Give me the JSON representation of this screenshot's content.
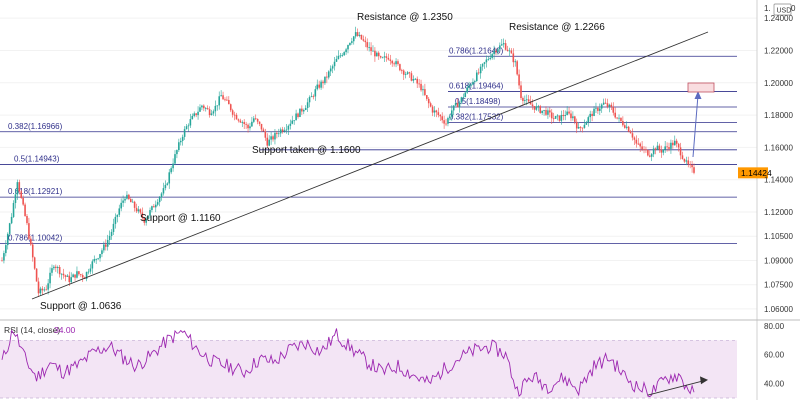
{
  "chart_data": {
    "type": "candlestick",
    "currency_label": "USD",
    "price_axis": {
      "min": 1.055,
      "max": 1.25,
      "ticks": [
        "1.24000",
        "1.22000",
        "1.20000",
        "1.18000",
        "1.16000",
        "1.14000",
        "1.12000",
        "1.10500",
        "1.09000",
        "1.07500",
        "1.06000"
      ],
      "tick_values": [
        1.24,
        1.22,
        1.2,
        1.18,
        1.16,
        1.14,
        1.12,
        1.105,
        1.09,
        1.075,
        1.06
      ],
      "top_label": "1.",
      "current_price": "1.14424",
      "current_value": 1.14424
    },
    "price_anchors": [
      [
        0,
        1.09
      ],
      [
        5,
        1.118
      ],
      [
        8,
        1.14
      ],
      [
        10,
        1.128
      ],
      [
        13,
        1.112
      ],
      [
        16,
        1.0915
      ],
      [
        19,
        1.07
      ],
      [
        23,
        1.073
      ],
      [
        27,
        1.088
      ],
      [
        31,
        1.082
      ],
      [
        35,
        1.078
      ],
      [
        39,
        1.082
      ],
      [
        43,
        1.08
      ],
      [
        46,
        1.087
      ],
      [
        50,
        1.093
      ],
      [
        54,
        1.1
      ],
      [
        57,
        1.108
      ],
      [
        61,
        1.122
      ],
      [
        64,
        1.13
      ],
      [
        67,
        1.126
      ],
      [
        71,
        1.12
      ],
      [
        74,
        1.115
      ],
      [
        78,
        1.122
      ],
      [
        81,
        1.128
      ],
      [
        85,
        1.135
      ],
      [
        88,
        1.148
      ],
      [
        91,
        1.158
      ],
      [
        94,
        1.168
      ],
      [
        97,
        1.175
      ],
      [
        101,
        1.181
      ],
      [
        104,
        1.186
      ],
      [
        108,
        1.182
      ],
      [
        111,
        1.185
      ],
      [
        114,
        1.192
      ],
      [
        118,
        1.186
      ],
      [
        121,
        1.18
      ],
      [
        125,
        1.176
      ],
      [
        128,
        1.172
      ],
      [
        131,
        1.178
      ],
      [
        135,
        1.172
      ],
      [
        138,
        1.163
      ],
      [
        141,
        1.166
      ],
      [
        144,
        1.17
      ],
      [
        148,
        1.173
      ],
      [
        151,
        1.177
      ],
      [
        155,
        1.182
      ],
      [
        158,
        1.186
      ],
      [
        161,
        1.191
      ],
      [
        164,
        1.197
      ],
      [
        168,
        1.202
      ],
      [
        171,
        1.208
      ],
      [
        174,
        1.214
      ],
      [
        178,
        1.22
      ],
      [
        181,
        1.226
      ],
      [
        184,
        1.23
      ],
      [
        187,
        1.227
      ],
      [
        191,
        1.221
      ],
      [
        194,
        1.218
      ],
      [
        197,
        1.214
      ],
      [
        201,
        1.216
      ],
      [
        204,
        1.213
      ],
      [
        208,
        1.208
      ],
      [
        211,
        1.205
      ],
      [
        214,
        1.202
      ],
      [
        218,
        1.197
      ],
      [
        221,
        1.189
      ],
      [
        224,
        1.183
      ],
      [
        228,
        1.179
      ],
      [
        231,
        1.175
      ],
      [
        234,
        1.183
      ],
      [
        238,
        1.188
      ],
      [
        241,
        1.194
      ],
      [
        244,
        1.2
      ],
      [
        248,
        1.206
      ],
      [
        251,
        1.212
      ],
      [
        254,
        1.217
      ],
      [
        257,
        1.221
      ],
      [
        261,
        1.224
      ],
      [
        264,
        1.219
      ],
      [
        267,
        1.212
      ],
      [
        270,
        1.192
      ],
      [
        273,
        1.188
      ],
      [
        277,
        1.185
      ],
      [
        280,
        1.183
      ],
      [
        283,
        1.182
      ],
      [
        287,
        1.178
      ],
      [
        290,
        1.178
      ],
      [
        293,
        1.181
      ],
      [
        297,
        1.179
      ],
      [
        300,
        1.171
      ],
      [
        303,
        1.175
      ],
      [
        307,
        1.181
      ],
      [
        310,
        1.184
      ],
      [
        313,
        1.187
      ],
      [
        317,
        1.184
      ],
      [
        320,
        1.178
      ],
      [
        324,
        1.174
      ],
      [
        327,
        1.17
      ],
      [
        330,
        1.162
      ],
      [
        334,
        1.158
      ],
      [
        337,
        1.156
      ],
      [
        340,
        1.16
      ],
      [
        343,
        1.158
      ],
      [
        347,
        1.161
      ],
      [
        350,
        1.163
      ],
      [
        353,
        1.157
      ],
      [
        356,
        1.15
      ],
      [
        359,
        1.146
      ],
      [
        360,
        1.1442
      ]
    ],
    "horizontal_levels": [
      {
        "label": "0.382(1.16966)",
        "value": 1.16966
      },
      {
        "label": "0.5(1.14943)",
        "value": 1.14943
      },
      {
        "label": "0.618(1.12921)",
        "value": 1.12921
      },
      {
        "label": "0.786(1.10042)",
        "value": 1.10042
      },
      {
        "label": "0.786(1.21640)",
        "value": 1.2164
      },
      {
        "label": "0.618(1.19464)",
        "value": 1.19464
      },
      {
        "label": "0.5(1.18498)",
        "value": 1.18498
      },
      {
        "label": "0.382(1.17532)",
        "value": 1.17532
      },
      {
        "label": "",
        "value": 1.1585
      }
    ],
    "annotations": [
      {
        "text": "Resistance @ 1.2350",
        "value": 1.235
      },
      {
        "text": "Resistance @ 1.2266",
        "value": 1.2266
      },
      {
        "text": "Support taken @ 1.1600",
        "value": 1.16
      },
      {
        "text": "Support @ 1.1160",
        "value": 1.116
      },
      {
        "text": "Support @ 1.0636",
        "value": 1.0636
      }
    ],
    "rsi": {
      "label": "RSI (14, close)",
      "value": "34.00",
      "current": 34.0,
      "ticks": [
        "80.00",
        "60.00",
        "40.00"
      ],
      "tick_values": [
        80,
        60,
        40
      ],
      "range": [
        30,
        82
      ],
      "band": [
        30,
        70
      ],
      "anchors": [
        [
          0,
          55
        ],
        [
          6,
          78
        ],
        [
          12,
          57
        ],
        [
          18,
          44
        ],
        [
          25,
          54
        ],
        [
          32,
          48
        ],
        [
          40,
          53
        ],
        [
          48,
          62
        ],
        [
          56,
          66
        ],
        [
          63,
          58
        ],
        [
          70,
          52
        ],
        [
          78,
          60
        ],
        [
          86,
          70
        ],
        [
          94,
          76
        ],
        [
          102,
          63
        ],
        [
          110,
          55
        ],
        [
          118,
          52
        ],
        [
          126,
          48
        ],
        [
          134,
          57
        ],
        [
          142,
          55
        ],
        [
          150,
          64
        ],
        [
          158,
          68
        ],
        [
          166,
          62
        ],
        [
          174,
          74
        ],
        [
          182,
          64
        ],
        [
          190,
          55
        ],
        [
          198,
          48
        ],
        [
          206,
          52
        ],
        [
          214,
          46
        ],
        [
          222,
          40
        ],
        [
          230,
          50
        ],
        [
          238,
          58
        ],
        [
          246,
          63
        ],
        [
          254,
          66
        ],
        [
          262,
          60
        ],
        [
          268,
          35
        ],
        [
          276,
          45
        ],
        [
          284,
          38
        ],
        [
          292,
          44
        ],
        [
          300,
          36
        ],
        [
          308,
          52
        ],
        [
          316,
          58
        ],
        [
          324,
          45
        ],
        [
          330,
          38
        ],
        [
          338,
          34
        ],
        [
          346,
          44
        ],
        [
          352,
          46
        ],
        [
          356,
          38
        ],
        [
          360,
          34
        ]
      ]
    },
    "colors": {
      "up": "#26a69a",
      "down": "#ef5350",
      "level": "#2f2f8a",
      "trend": "#333333",
      "rsi": "#9c27b0",
      "rsi_band": "#f3e5f5",
      "price_tag": "#ff9800",
      "target": "#f9dde0"
    }
  }
}
